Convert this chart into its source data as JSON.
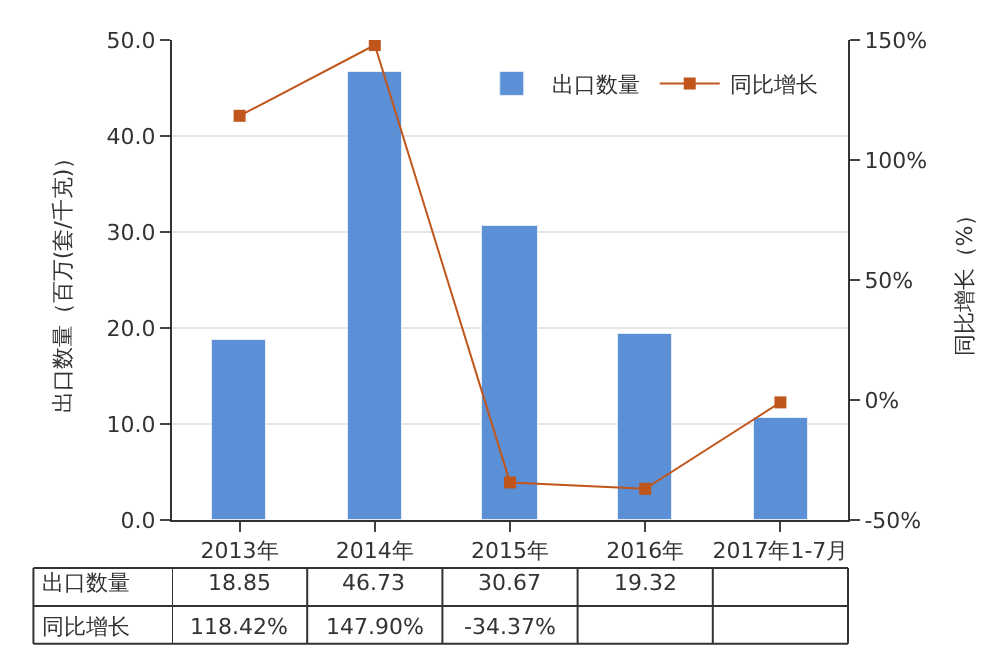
{
  "chart_data": {
    "type": "bar",
    "categories": [
      "2013年",
      "2014年",
      "2015年",
      "2016年",
      "2017年1-7月"
    ],
    "ylabel": "出口数量（百万(套/千克)）",
    "y2label": "同比增长（%）",
    "series": [
      {
        "name": "出口数量",
        "color": "#5b8fd6",
        "values": [
          18.85,
          46.73,
          30.67,
          19.32,
          10.7
        ],
        "value_labels": [
          "18.85",
          "46.73",
          "30.67",
          "19.32",
          null
        ]
      },
      {
        "name": "同比增长",
        "type": "line",
        "axis": "y2",
        "color": "#c0561b",
        "marker": "square",
        "values": [
          118.42,
          147.9,
          -34.37,
          -37.0,
          -1
        ],
        "value_labels": [
          "118.42%",
          "147.90%",
          "-34.37%",
          null,
          null
        ]
      }
    ],
    "ylim": [
      0,
      50
    ],
    "yticks": [
      {
        "value": 0,
        "label": "0.0"
      },
      {
        "value": 10,
        "label": "10.0"
      },
      {
        "value": 20,
        "label": "20.0"
      },
      {
        "value": 30,
        "label": "30.0"
      },
      {
        "value": 40,
        "label": "40.0"
      },
      {
        "value": 50,
        "label": "50.0"
      }
    ],
    "y2lim": [
      -50,
      150
    ],
    "y2ticks": [
      {
        "value": -50,
        "label": "-50%"
      },
      {
        "value": 0,
        "label": "0%"
      },
      {
        "value": 50,
        "label": "50%"
      },
      {
        "value": 100,
        "label": "100%"
      },
      {
        "value": 150,
        "label": "150%"
      }
    ],
    "grid": "y",
    "legend": "top right"
  }
}
